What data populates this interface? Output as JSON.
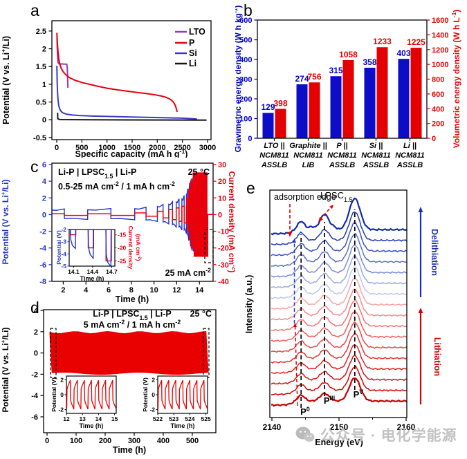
{
  "watermark": {
    "icon": "wechat-icon",
    "text": "公众号 · 电化学能源"
  },
  "panels": {
    "a": {
      "label": "a",
      "chart_data": {
        "type": "line",
        "xlabel_parts": [
          {
            "t": "Specific capacity (mA h g"
          },
          {
            "t": "-1",
            "sup": true
          },
          {
            "t": ")"
          }
        ],
        "ylabel_parts": [
          {
            "t": "Potential (V vs. Li"
          },
          {
            "t": "+",
            "sup": true
          },
          {
            "t": "/Li)"
          }
        ],
        "xlim": [
          0,
          3000
        ],
        "ylim": [
          -0.56,
          2.79
        ],
        "xticks": [
          0,
          500,
          1000,
          1500,
          2000,
          2500,
          3000
        ],
        "yticks": [
          -0.5,
          0,
          0.5,
          1,
          1.5,
          2,
          2.5
        ],
        "series": [
          {
            "name": "LTO",
            "color": "#9437C2",
            "points": [
              [
                5,
                2.32
              ],
              [
                10,
                2.05
              ],
              [
                16,
                1.78
              ],
              [
                25,
                1.62
              ],
              [
                45,
                1.575
              ],
              [
                120,
                1.57
              ],
              [
                200,
                1.565
              ],
              [
                208,
                1.5
              ],
              [
                214,
                1.3
              ],
              [
                219,
                1.05
              ],
              [
                222,
                0.9
              ]
            ]
          },
          {
            "name": "P",
            "color": "#E8000B",
            "points": [
              [
                3,
                2.45
              ],
              [
                8,
                2.3
              ],
              [
                15,
                2.12
              ],
              [
                25,
                1.93
              ],
              [
                40,
                1.73
              ],
              [
                60,
                1.57
              ],
              [
                90,
                1.45
              ],
              [
                130,
                1.35
              ],
              [
                180,
                1.27
              ],
              [
                250,
                1.19
              ],
              [
                350,
                1.12
              ],
              [
                500,
                1.05
              ],
              [
                650,
                1.0
              ],
              [
                800,
                0.95
              ],
              [
                1000,
                0.89
              ],
              [
                1200,
                0.845
              ],
              [
                1400,
                0.805
              ],
              [
                1600,
                0.77
              ],
              [
                1800,
                0.735
              ],
              [
                1950,
                0.705
              ],
              [
                2080,
                0.67
              ],
              [
                2180,
                0.63
              ],
              [
                2260,
                0.575
              ],
              [
                2320,
                0.5
              ],
              [
                2360,
                0.4
              ],
              [
                2385,
                0.28
              ],
              [
                2395,
                0.22
              ]
            ]
          },
          {
            "name": "Si",
            "color": "#3A3AC8",
            "points": [
              [
                3,
                1.52
              ],
              [
                8,
                1.1
              ],
              [
                15,
                0.8
              ],
              [
                25,
                0.58
              ],
              [
                40,
                0.4
              ],
              [
                60,
                0.3
              ],
              [
                90,
                0.23
              ],
              [
                130,
                0.19
              ],
              [
                200,
                0.155
              ],
              [
                300,
                0.135
              ],
              [
                450,
                0.12
              ],
              [
                700,
                0.105
              ],
              [
                1000,
                0.095
              ],
              [
                1400,
                0.08
              ],
              [
                1800,
                0.068
              ],
              [
                2200,
                0.055
              ],
              [
                2500,
                0.045
              ],
              [
                2700,
                0.03
              ],
              [
                2790,
                0.02
              ]
            ]
          },
          {
            "name": "Li",
            "color": "#141414",
            "points": [
              [
                18,
                0.2
              ],
              [
                20,
                0.03
              ],
              [
                60,
                0.005
              ],
              [
                1500,
                -0.005
              ],
              [
                2980,
                -0.01
              ]
            ]
          }
        ]
      }
    },
    "b": {
      "label": "b",
      "chart_data": {
        "type": "bar",
        "categories_lines": [
          [
            "LTO ||",
            "NCM811",
            "ASSLB"
          ],
          [
            "Graphite ||",
            "NCM811",
            "LIB"
          ],
          [
            "P ||",
            "NCM811",
            "ASSLB"
          ],
          [
            "Si ||",
            "NCM811",
            "ASSLB"
          ],
          [
            "Li ||",
            "NCM811",
            "ASSLB"
          ]
        ],
        "series": [
          {
            "name": "Gravimetric energy density",
            "axis": "left",
            "color": "#0D0DC8",
            "values": [
              129,
              274,
              315,
              358,
              403
            ]
          },
          {
            "name": "Volumetric energy density",
            "axis": "right",
            "color": "#E40000",
            "values": [
              398,
              756,
              1058,
              1233,
              1225
            ]
          }
        ],
        "left_axis": {
          "label_parts": [
            {
              "t": "Gravimetric energy density (W h kg"
            },
            {
              "t": "-1",
              "sup": true
            },
            {
              "t": ")"
            }
          ],
          "lim": [
            0,
            600
          ],
          "ticks": [
            0,
            100,
            200,
            300,
            400,
            500,
            600
          ],
          "color": "#0000CD"
        },
        "right_axis": {
          "label_parts": [
            {
              "t": "Volumetric energy density (W h L"
            },
            {
              "t": "-1",
              "sup": true
            },
            {
              "t": ")"
            }
          ],
          "lim": [
            0,
            1600
          ],
          "ticks": [
            0,
            200,
            400,
            600,
            800,
            1000,
            1200,
            1400,
            1600
          ],
          "color": "#E40000"
        }
      }
    },
    "c": {
      "label": "c",
      "chart_data": {
        "type": "line",
        "title_parts": [
          {
            "t": "Li-P | LPSC"
          },
          {
            "t": "1.5",
            "sub": true
          },
          {
            "t": " | Li-P"
          }
        ],
        "temperature": "25 °C",
        "rate_parts": [
          {
            "t": "0.5-25 mA cm"
          },
          {
            "t": "-2",
            "sup": true
          },
          {
            "t": " / 1 mA h cm"
          },
          {
            "t": "-2",
            "sup": true
          }
        ],
        "corner_parts": [
          {
            "t": "25 mA cm"
          },
          {
            "t": "-2",
            "sup": true
          }
        ],
        "xlabel": "Time (h)",
        "xticks": [
          2,
          4,
          6,
          8,
          10,
          12,
          14
        ],
        "left_axis": {
          "label_parts": [
            {
              "t": "Potential (V vs. Li"
            },
            {
              "t": "+",
              "sup": true
            },
            {
              "t": "/Li)"
            }
          ],
          "lim": [
            -8,
            6
          ],
          "ticks": [
            -8,
            -6,
            -4,
            -2,
            0,
            2,
            4,
            6
          ],
          "color": "#2233CC"
        },
        "right_axis": {
          "label_parts": [
            {
              "t": "Current density (mA cm"
            },
            {
              "t": "-2",
              "sup": true
            },
            {
              "t": ")"
            }
          ],
          "lim": [
            -40,
            30
          ],
          "ticks": [
            -40,
            -30,
            -20,
            -10,
            0,
            10,
            20,
            30
          ],
          "color": "#E8000B"
        },
        "steps": [
          [
            1.0,
            2.1,
            0.5,
            0.68
          ],
          [
            2.1,
            4.15,
            -0.5,
            0.58
          ],
          [
            4.15,
            6.2,
            0.5,
            0.72
          ],
          [
            6.2,
            8.3,
            -0.5,
            0.62
          ],
          [
            8.3,
            9.3,
            1,
            0.88
          ],
          [
            9.3,
            10.3,
            -1,
            0.82
          ],
          [
            10.3,
            10.8,
            2,
            1.22
          ],
          [
            10.8,
            11.3,
            -2,
            1.12
          ],
          [
            11.3,
            11.63,
            3,
            1.55
          ],
          [
            11.63,
            11.96,
            -3,
            1.5
          ],
          [
            11.96,
            12.21,
            4,
            1.9
          ],
          [
            12.21,
            12.46,
            -4,
            1.85
          ],
          [
            12.46,
            12.66,
            5,
            2.3
          ],
          [
            12.66,
            12.86,
            -5,
            2.3
          ],
          [
            12.86,
            12.96,
            10,
            3.1
          ],
          [
            12.96,
            13.06,
            -10,
            3.1
          ],
          [
            13.06,
            13.14,
            15,
            3.8
          ],
          [
            13.14,
            13.22,
            -15,
            3.8
          ],
          [
            13.22,
            13.28,
            20,
            4.3
          ],
          [
            13.28,
            13.34,
            -20,
            4.3
          ],
          [
            13.34,
            13.4,
            20,
            4.4
          ],
          [
            13.4,
            13.46,
            -20,
            4.4
          ],
          [
            13.46,
            13.54,
            25,
            4.6
          ],
          [
            13.54,
            13.62,
            -25,
            4.6
          ],
          [
            13.62,
            13.7,
            25,
            4.7
          ],
          [
            13.7,
            13.78,
            -25,
            4.7
          ],
          [
            13.78,
            13.86,
            25,
            4.8
          ],
          [
            13.86,
            13.94,
            -25,
            4.8
          ],
          [
            13.94,
            14.02,
            25,
            4.85
          ],
          [
            14.02,
            14.1,
            -25,
            4.85
          ],
          [
            14.1,
            14.18,
            25,
            4.9
          ],
          [
            14.18,
            14.26,
            -25,
            4.9
          ],
          [
            14.26,
            14.34,
            25,
            4.95
          ],
          [
            14.34,
            14.42,
            -25,
            4.95
          ],
          [
            14.42,
            14.5,
            25,
            5.0
          ],
          [
            14.5,
            14.58,
            -25,
            5.0
          ],
          [
            14.58,
            14.66,
            25,
            5.0
          ],
          [
            14.66,
            14.74,
            -25,
            5.0
          ],
          [
            14.74,
            15.15,
            0,
            0.05
          ]
        ],
        "inset": {
          "ylabel": "Potential (V)",
          "yticks": [
            -2,
            -3,
            -4,
            -5
          ],
          "right_label_line1": "Current density",
          "right_label_line2_parts": [
            {
              "t": "(mA cm"
            },
            {
              "t": "-2",
              "sup": true
            },
            {
              "t": ")"
            }
          ],
          "right_ticks": [
            -15,
            -20,
            -25
          ],
          "xlabel": "Time (h)",
          "xticks": [
            14.1,
            14.4,
            14.7
          ],
          "events": [
            [
              14.1,
              -15,
              -3.55
            ],
            [
              14.38,
              -20,
              -4.35
            ],
            [
              14.66,
              -25,
              -5.05
            ]
          ]
        }
      }
    },
    "d": {
      "label": "d",
      "chart_data": {
        "type": "line",
        "title_parts": [
          {
            "t": "Li-P | LPSC"
          },
          {
            "t": "1.5",
            "sub": true
          },
          {
            "t": " | Li-P"
          }
        ],
        "temperature": "25 °C",
        "rate_parts": [
          {
            "t": "5 mA cm"
          },
          {
            "t": "-2",
            "sup": true
          },
          {
            "t": " / 1 mA h cm"
          },
          {
            "t": "-2",
            "sup": true
          }
        ],
        "xlabel": "Time (h)",
        "xticks": [
          0,
          100,
          200,
          300,
          400,
          500
        ],
        "ylabel_parts": [
          {
            "t": "Potential (V vs. Li"
          },
          {
            "t": "+",
            "sup": true
          },
          {
            "t": "/Li)"
          }
        ],
        "ylim": [
          -7.4,
          4.1
        ],
        "yticks": [
          4,
          2,
          0,
          -2,
          -4,
          -6
        ],
        "band": {
          "t0": 8,
          "t1": 556,
          "vmax": 1.95,
          "vmin": -1.95,
          "color": "#E90000"
        },
        "cycle": {
          "period": 0.44,
          "count": 7,
          "vmax": 1.95,
          "vmin": -1.95
        },
        "insets": [
          {
            "t0": 12,
            "xticks": [
              12,
              13,
              14,
              15
            ],
            "ylabel": "Potential (V)",
            "yticks": [
              2,
              0,
              -2
            ],
            "xlabel": "Time (h)"
          },
          {
            "t0": 522,
            "xticks": [
              522,
              523,
              524,
              525
            ],
            "ylabel": "Potential (V)",
            "yticks": [
              2,
              0,
              -2
            ],
            "xlabel": "Time (h)"
          }
        ]
      }
    },
    "e": {
      "label": "e",
      "chart_data": {
        "type": "line",
        "xlabel": "Energy (eV)",
        "xticks": [
          2140,
          2150,
          2160
        ],
        "xminor": [
          2145,
          2155
        ],
        "ylabel": "Intensity (a.u.)",
        "xlim": [
          2139.9,
          2160.4
        ],
        "curve_colors": [
          "#C80000",
          "#D20404",
          "#DB1111",
          "#E32121",
          "#E93333",
          "#EF4747",
          "#F35C5C",
          "#F67272",
          "#F88A8A",
          "#FAA5A5",
          "#BFC6EE",
          "#9DA8E4",
          "#7C8BD8",
          "#5B6ECC",
          "#3B51C0",
          "#2038B6",
          "#0F2AAE"
        ],
        "peaks": [
          {
            "base": "P",
            "sup": "0",
            "x": 2144.35
          },
          {
            "base": "P",
            "sup": "III",
            "x": 2147.85
          },
          {
            "base": "P",
            "sup": "V",
            "x": 2152.35
          }
        ],
        "annotations": {
          "edge_text": "adsorption edge",
          "sample_parts": [
            {
              "t": "LPSC"
            },
            {
              "t": "1.5",
              "sub": true
            }
          ],
          "delithiation": {
            "text": "Delithiation",
            "color": "#1A2FB4"
          },
          "lithiation": {
            "text": "Lithiation",
            "color": "#D40000"
          }
        }
      }
    }
  }
}
